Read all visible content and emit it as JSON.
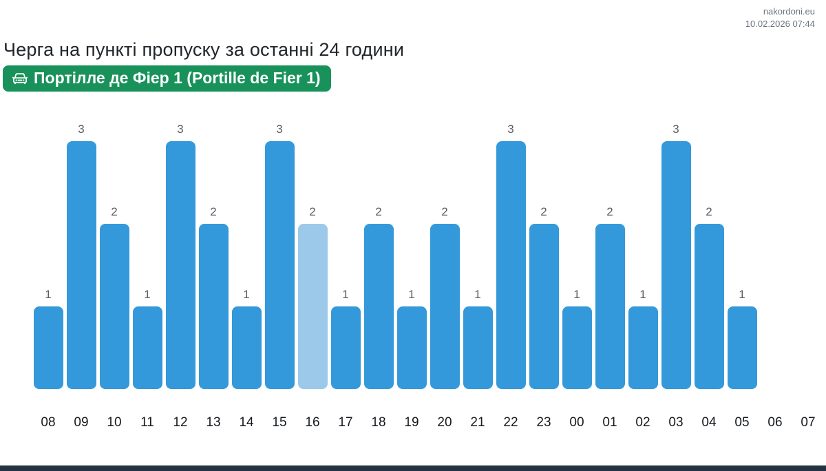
{
  "header": {
    "site": "nakordoni.eu",
    "timestamp": "10.02.2026 07:44"
  },
  "title": "Черга на пункті пропуску за останні 24 години",
  "checkpoint": {
    "name": "Портілле де Фіер 1 (Portille de Fier 1)",
    "icon": "car-front-icon",
    "badge_color": "#18925a"
  },
  "chart_data": {
    "type": "bar",
    "title": "Черга на пункті пропуску за останні 24 години",
    "categories": [
      "08",
      "09",
      "10",
      "11",
      "12",
      "13",
      "14",
      "15",
      "16",
      "17",
      "18",
      "19",
      "20",
      "21",
      "22",
      "23",
      "00",
      "01",
      "02",
      "03",
      "04",
      "05",
      "06",
      "07"
    ],
    "values": [
      1,
      3,
      2,
      1,
      3,
      2,
      1,
      3,
      2,
      1,
      2,
      1,
      2,
      1,
      3,
      2,
      1,
      2,
      1,
      3,
      2,
      1,
      0,
      0
    ],
    "highlight_category": "16",
    "highlight_index": 8,
    "bar_color": "#3499db",
    "highlight_color": "#9cc9e9",
    "value_label_color": "#595e64",
    "xlabel": "",
    "ylabel": "",
    "ylim": [
      0,
      3
    ],
    "grid": false,
    "legend": false,
    "value_labels_shown": true
  },
  "footer": {
    "bar_color": "#243342"
  }
}
